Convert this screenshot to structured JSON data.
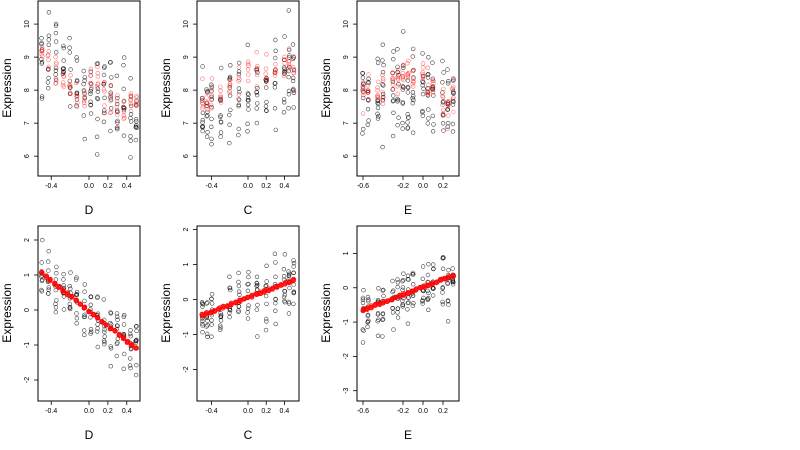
{
  "figure": {
    "background": "#ffffff"
  },
  "colors": {
    "black_points": "#000000",
    "red_points": "#ff0000",
    "fit_line": "#ff0000"
  },
  "chart_data": [
    {
      "type": "scatter",
      "title": "",
      "xlabel": "D",
      "ylabel": "Expression",
      "xlim": [
        -0.54,
        0.54
      ],
      "ylim": [
        5.4,
        10.7
      ],
      "xticks": [
        -0.4,
        0.0,
        0.2,
        0.4
      ],
      "xtick_labels": [
        "-0.4",
        "0.0",
        "0.2",
        "0.4"
      ],
      "yticks": [
        6,
        7,
        8,
        9,
        10
      ],
      "ytick_labels": [
        "6",
        "7",
        "8",
        "9",
        "10"
      ],
      "grid": false,
      "legend": "none",
      "x_groups": [
        -0.5,
        -0.43,
        -0.35,
        -0.27,
        -0.2,
        -0.13,
        -0.05,
        0.02,
        0.09,
        0.16,
        0.23,
        0.3,
        0.37,
        0.44,
        0.5
      ],
      "series": [
        {
          "color": "black",
          "marker": "open-circle",
          "points_per_group": 9,
          "y_spread": 1.1,
          "trend": [
            [
              -0.5,
              9.1
            ],
            [
              0.5,
              7.0
            ]
          ]
        },
        {
          "color": "red",
          "marker": "open-circle",
          "points_per_group": 6,
          "y_spread": 0.45,
          "group_means": [
            9.2,
            8.9,
            8.6,
            8.3,
            8.0,
            7.8,
            7.6,
            8.2,
            8.4,
            7.8,
            7.6,
            7.4,
            7.3,
            7.5,
            7.6
          ]
        }
      ]
    },
    {
      "type": "scatter",
      "title": "",
      "xlabel": "C",
      "ylabel": "Expression",
      "xlim": [
        -0.56,
        0.56
      ],
      "ylim": [
        5.4,
        10.7
      ],
      "xticks": [
        -0.4,
        0.0,
        0.2,
        0.4
      ],
      "xtick_labels": [
        "-0.4",
        "0.0",
        "0.2",
        "0.4"
      ],
      "yticks": [
        6,
        7,
        8,
        9,
        10
      ],
      "ytick_labels": [
        "6",
        "7",
        "8",
        "9",
        "10"
      ],
      "grid": false,
      "legend": "none",
      "x_groups": [
        -0.5,
        -0.45,
        -0.4,
        -0.3,
        -0.2,
        -0.1,
        0.0,
        0.1,
        0.2,
        0.3,
        0.4,
        0.45,
        0.5
      ],
      "series": [
        {
          "color": "black",
          "marker": "open-circle",
          "points_per_group": 10,
          "y_spread": 1.1,
          "trend": [
            [
              -0.5,
              7.3
            ],
            [
              0.5,
              8.5
            ]
          ]
        },
        {
          "color": "red",
          "marker": "open-circle",
          "points_per_group": 6,
          "y_spread": 0.5,
          "group_means": [
            7.6,
            7.8,
            8.0,
            8.1,
            8.2,
            8.2,
            8.3,
            8.4,
            8.6,
            8.6,
            8.9,
            8.7,
            8.5
          ]
        }
      ]
    },
    {
      "type": "scatter",
      "title": "",
      "xlabel": "E",
      "ylabel": "Expression",
      "xlim": [
        -0.66,
        0.36
      ],
      "ylim": [
        5.4,
        10.7
      ],
      "xticks": [
        -0.6,
        -0.2,
        0.0,
        0.2
      ],
      "xtick_labels": [
        "-0.6",
        "-0.2",
        "0.0",
        "0.2"
      ],
      "yticks": [
        6,
        7,
        8,
        9,
        10
      ],
      "ytick_labels": [
        "6",
        "7",
        "8",
        "9",
        "10"
      ],
      "grid": false,
      "legend": "none",
      "x_groups": [
        -0.6,
        -0.55,
        -0.45,
        -0.4,
        -0.3,
        -0.25,
        -0.2,
        -0.15,
        -0.1,
        0.0,
        0.05,
        0.1,
        0.2,
        0.25,
        0.3
      ],
      "series": [
        {
          "color": "black",
          "marker": "open-circle",
          "points_per_group": 10,
          "y_spread": 1.2,
          "trend": [
            [
              -0.6,
              7.9
            ],
            [
              0.3,
              7.9
            ]
          ]
        },
        {
          "color": "red",
          "marker": "open-circle",
          "points_per_group": 7,
          "y_spread": 0.6,
          "group_means": [
            8.0,
            7.9,
            7.8,
            8.1,
            8.3,
            8.2,
            8.5,
            8.6,
            8.5,
            8.4,
            8.3,
            8.0,
            7.7,
            7.6,
            7.9
          ]
        }
      ]
    },
    {
      "type": "scatter",
      "title": "",
      "xlabel": "D",
      "ylabel": "Expression",
      "xlim": [
        -0.54,
        0.54
      ],
      "ylim": [
        -2.6,
        2.4
      ],
      "xticks": [
        -0.4,
        0.0,
        0.2,
        0.4
      ],
      "xtick_labels": [
        "-0.4",
        "0.0",
        "0.2",
        "0.4"
      ],
      "yticks": [
        -2,
        -1,
        0,
        1,
        2
      ],
      "ytick_labels": [
        "-2",
        "-1",
        "0",
        "1",
        "2"
      ],
      "grid": false,
      "legend": "none",
      "x_groups": [
        -0.5,
        -0.43,
        -0.35,
        -0.27,
        -0.2,
        -0.13,
        -0.05,
        0.02,
        0.09,
        0.16,
        0.23,
        0.3,
        0.37,
        0.44,
        0.5
      ],
      "series": [
        {
          "color": "black",
          "marker": "open-circle",
          "points_per_group": 10,
          "y_spread": 0.7,
          "trend": [
            [
              -0.5,
              1.05
            ],
            [
              0.5,
              -1.1
            ]
          ]
        }
      ],
      "fit_line": {
        "color": "red",
        "from": [
          -0.5,
          1.05
        ],
        "to": [
          0.5,
          -1.1
        ]
      }
    },
    {
      "type": "scatter",
      "title": "",
      "xlabel": "C",
      "ylabel": "Expression",
      "xlim": [
        -0.56,
        0.56
      ],
      "ylim": [
        -2.9,
        2.1
      ],
      "xticks": [
        -0.4,
        0.0,
        0.2,
        0.4
      ],
      "xtick_labels": [
        "-0.4",
        "0.0",
        "0.2",
        "0.4"
      ],
      "yticks": [
        -2,
        -1,
        0,
        1,
        2
      ],
      "ytick_labels": [
        "-2",
        "-1",
        "0",
        "1",
        "2"
      ],
      "grid": false,
      "legend": "none",
      "x_groups": [
        -0.5,
        -0.45,
        -0.4,
        -0.3,
        -0.2,
        -0.1,
        0.0,
        0.1,
        0.2,
        0.3,
        0.4,
        0.45,
        0.5
      ],
      "series": [
        {
          "color": "black",
          "marker": "open-circle",
          "points_per_group": 10,
          "y_spread": 0.7,
          "trend": [
            [
              -0.5,
              -0.45
            ],
            [
              0.5,
              0.55
            ]
          ]
        }
      ],
      "fit_line": {
        "color": "red",
        "from": [
          -0.5,
          -0.45
        ],
        "to": [
          0.5,
          0.55
        ]
      }
    },
    {
      "type": "scatter",
      "title": "",
      "xlabel": "E",
      "ylabel": "Expression",
      "xlim": [
        -0.66,
        0.36
      ],
      "ylim": [
        -3.3,
        1.8
      ],
      "xticks": [
        -0.6,
        -0.2,
        0.0,
        0.2
      ],
      "xtick_labels": [
        "-0.6",
        "-0.2",
        "0.0",
        "0.2"
      ],
      "yticks": [
        -3,
        -2,
        -1,
        0,
        1
      ],
      "ytick_labels": [
        "-3",
        "-2",
        "-1",
        "0",
        "1"
      ],
      "grid": false,
      "legend": "none",
      "x_groups": [
        -0.6,
        -0.55,
        -0.45,
        -0.4,
        -0.3,
        -0.25,
        -0.2,
        -0.15,
        -0.1,
        0.0,
        0.05,
        0.1,
        0.2,
        0.25,
        0.3
      ],
      "series": [
        {
          "color": "black",
          "marker": "open-circle",
          "points_per_group": 10,
          "y_spread": 0.7,
          "trend": [
            [
              -0.6,
              -0.65
            ],
            [
              0.3,
              0.35
            ]
          ]
        }
      ],
      "fit_line": {
        "color": "red",
        "from": [
          -0.6,
          -0.65
        ],
        "to": [
          0.3,
          0.35
        ]
      }
    }
  ]
}
